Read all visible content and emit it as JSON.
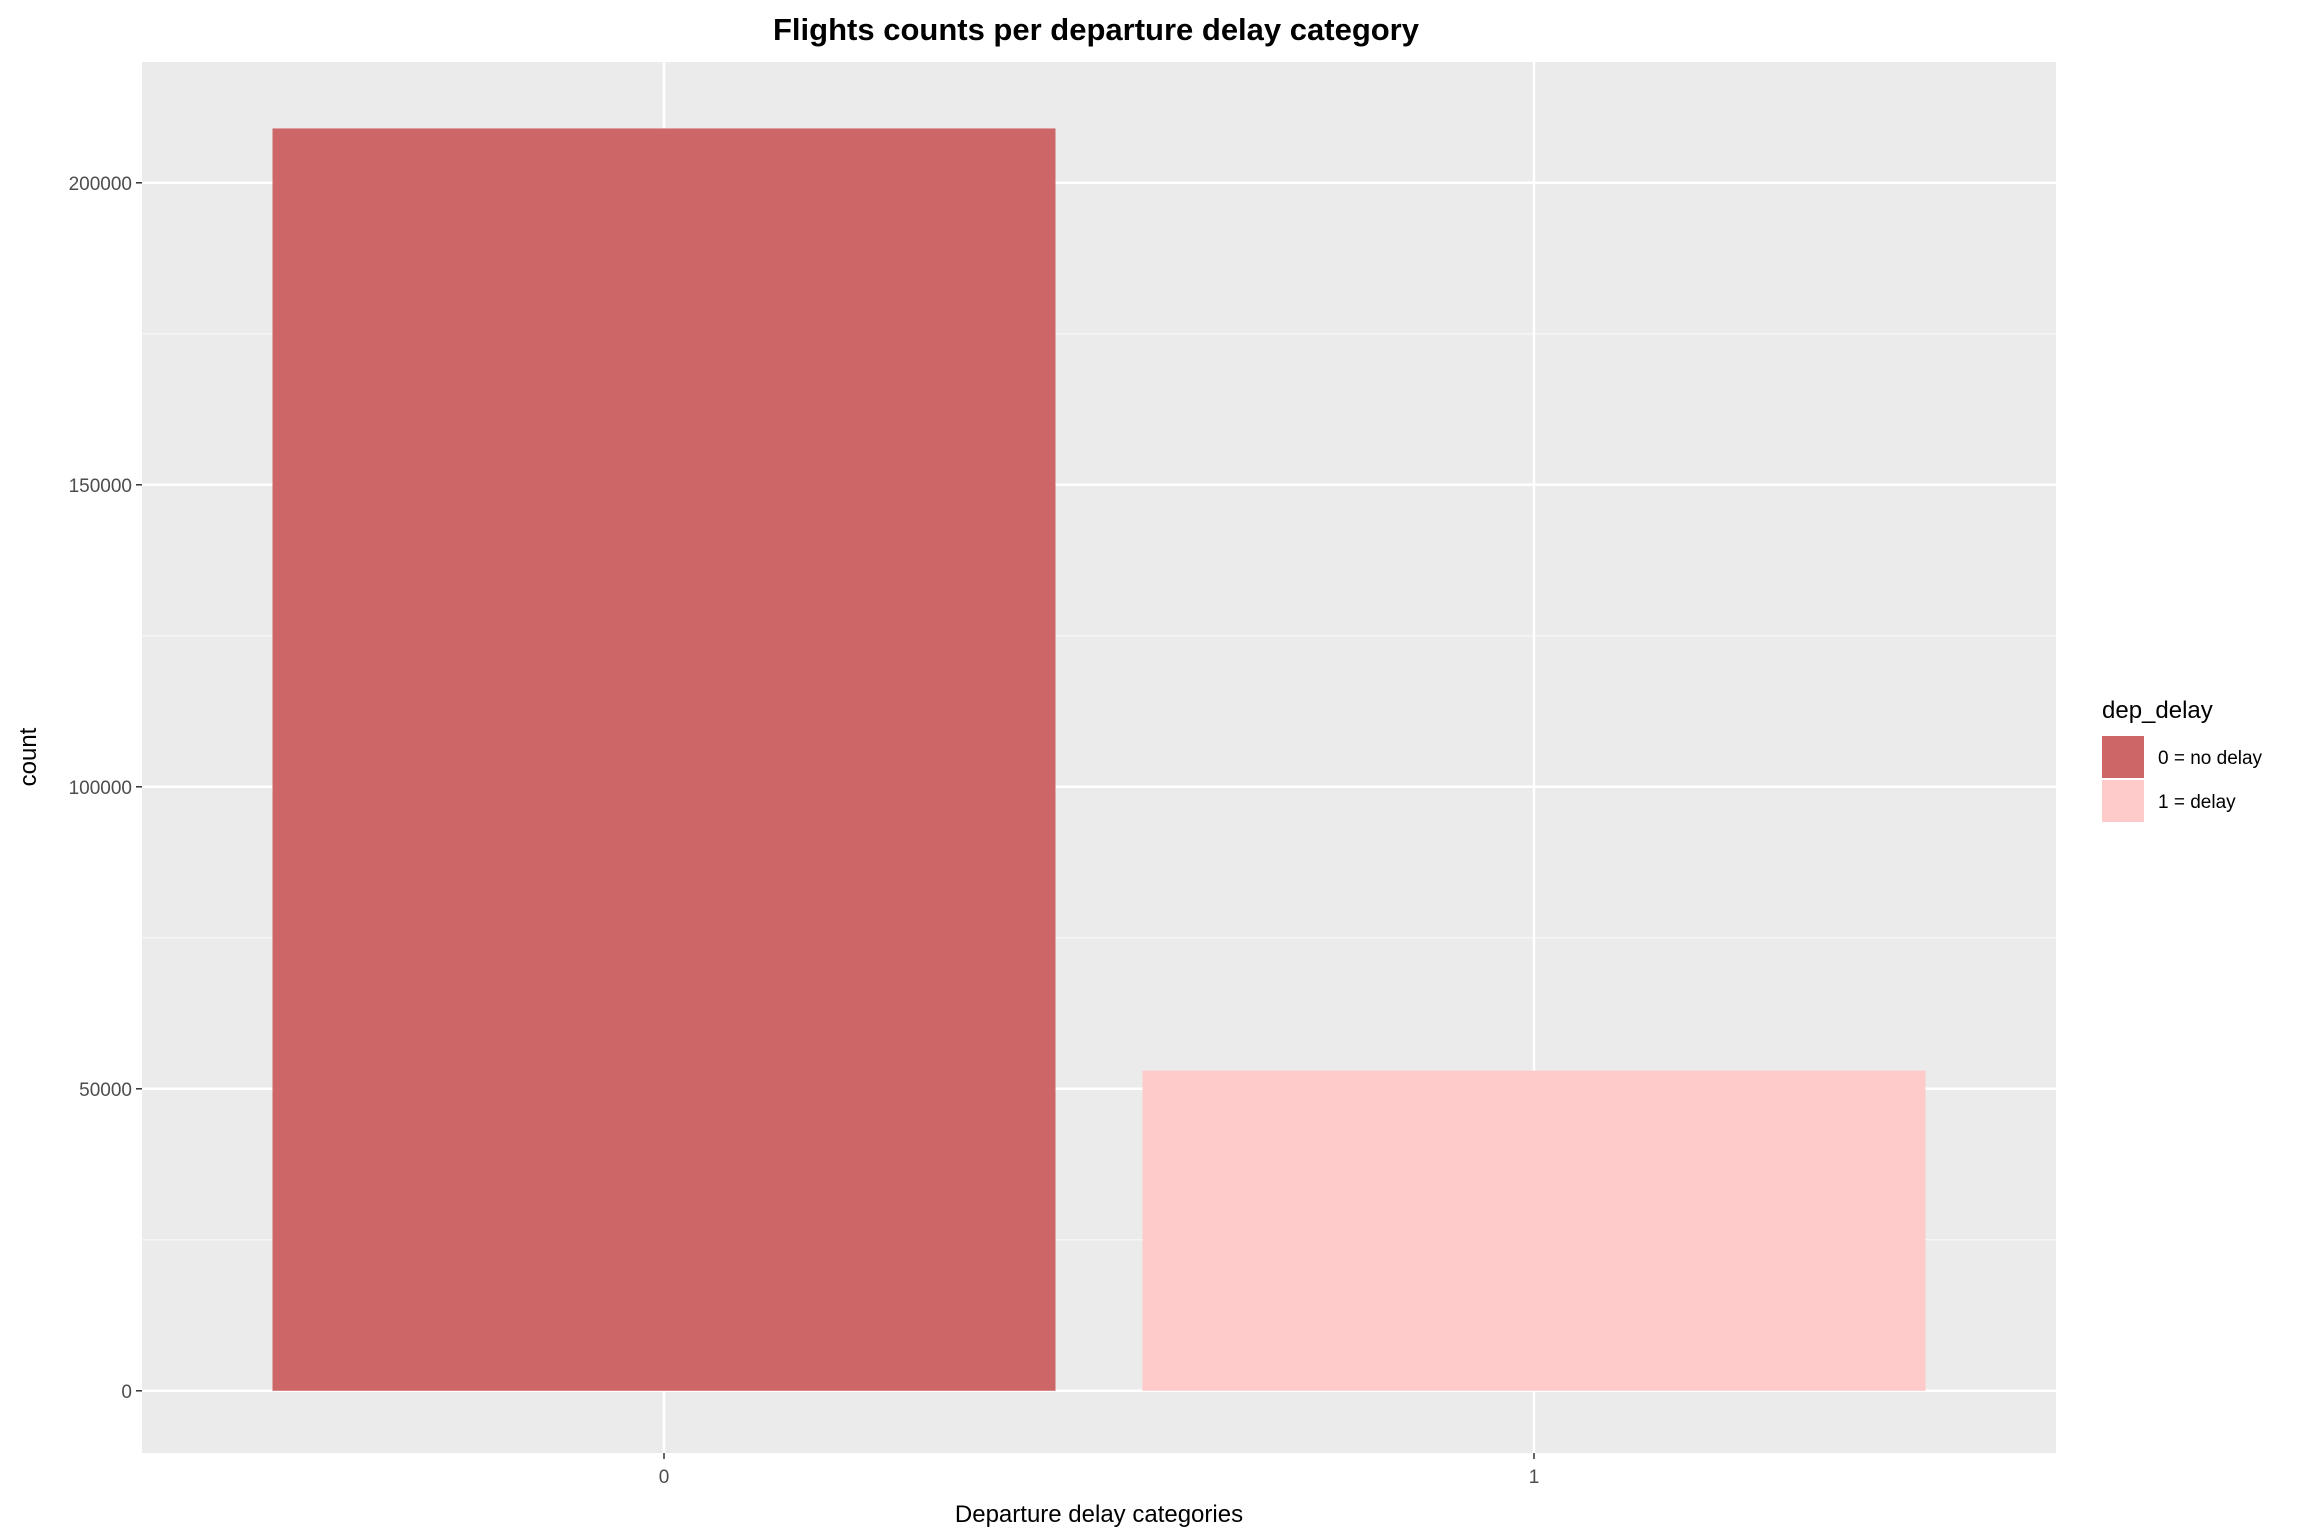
{
  "chart_data": {
    "type": "bar",
    "title": "Flights counts per departure delay category",
    "xlabel": "Departure delay categories",
    "ylabel": "count",
    "categories": [
      "0",
      "1"
    ],
    "values": [
      209000,
      53000
    ],
    "colors": [
      "#CD6666",
      "#FFCACA"
    ],
    "ylim": [
      -10300,
      220000
    ],
    "yticks": [
      0,
      50000,
      100000,
      150000,
      200000
    ],
    "ytick_labels": [
      "0",
      "50000",
      "100000",
      "150000",
      "200000"
    ],
    "grid": true,
    "legend": {
      "title": "dep_delay",
      "position": "right",
      "entries": [
        {
          "label": "0 = no delay",
          "color": "#CD6666"
        },
        {
          "label": "1 = delay",
          "color": "#FFCACA"
        }
      ]
    }
  }
}
